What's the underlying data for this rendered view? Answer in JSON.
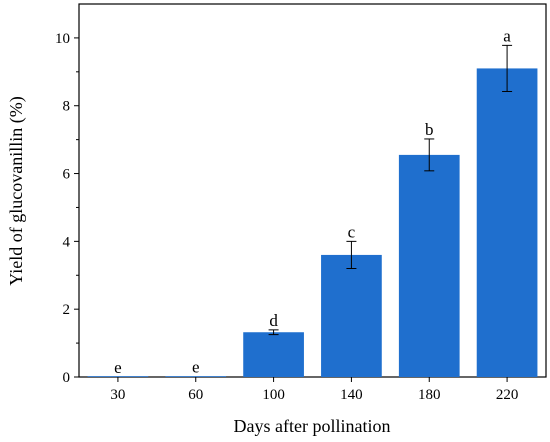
{
  "chart_data": {
    "type": "bar",
    "title": "",
    "xlabel": "Days after pollination",
    "ylabel": "Yield of glucovanillin (%)",
    "categories": [
      "30",
      "60",
      "100",
      "140",
      "180",
      "220"
    ],
    "values": [
      0.0,
      0.02,
      1.32,
      3.6,
      6.55,
      9.1
    ],
    "error": [
      0.0,
      0.0,
      0.07,
      0.4,
      0.47,
      0.68
    ],
    "significance_labels": [
      "e",
      "e",
      "d",
      "c",
      "b",
      "a"
    ],
    "ylim": [
      0,
      11
    ],
    "yticks": [
      0,
      2,
      4,
      6,
      8,
      10
    ],
    "grid": false,
    "bar_color": "#1f6fce"
  }
}
